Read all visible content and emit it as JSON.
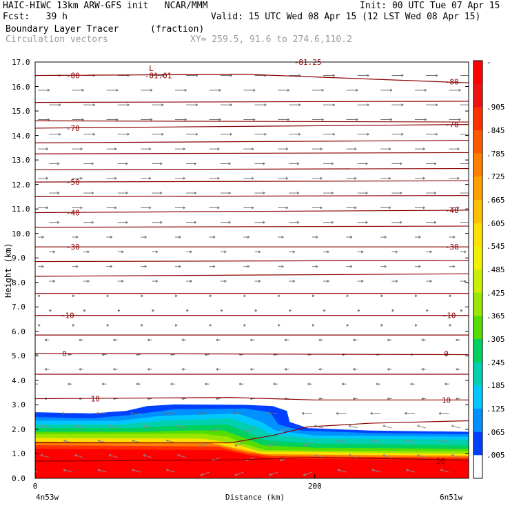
{
  "header": {
    "title_left": "HAIC-HIWC 13km ARW-GFS init   NCAR/MMM",
    "init": "Init: 00 UTC Tue 07 Apr 15",
    "fcst": "Fcst:   39 h",
    "valid": "Valid: 15 UTC Wed 08 Apr 15 (12 LST Wed 08 Apr 15)",
    "field": "Boundary Layer Tracer",
    "units": "(fraction)",
    "vectors": "Circulation vectors",
    "xy": "XY= 259.5, 91.6 to 274.6,110.2"
  },
  "chart_data": {
    "type": "heatmap",
    "xlabel": "Distance (km)",
    "ylabel": "Height (km)",
    "x_ticks": [
      {
        "value": 0,
        "label": "0"
      },
      {
        "value": 200,
        "label": "200"
      }
    ],
    "x_end_labels": {
      "left": "4n53w",
      "right": "6n51w"
    },
    "xlim": [
      0,
      310
    ],
    "ylim": [
      0,
      17
    ],
    "y_ticks": [
      "0.0",
      "1.0",
      "2.0",
      "3.0",
      "4.0",
      "5.0",
      "6.0",
      "7.0",
      "8.0",
      "9.0",
      "10.0",
      "11.0",
      "12.0",
      "13.0",
      "14.0",
      "15.0",
      "16.0",
      "17.0"
    ],
    "colorbar": {
      "labels": [
        "-",
        ".905",
        ".845",
        ".785",
        ".725",
        ".665",
        ".605",
        ".545",
        ".485",
        ".425",
        ".365",
        ".305",
        ".245",
        ".185",
        ".125",
        ".065",
        ".005"
      ],
      "colors": [
        "#ff0000",
        "#f01010",
        "#ff3000",
        "#ff5a00",
        "#ff8000",
        "#ffa000",
        "#ffc000",
        "#ffe000",
        "#f2f200",
        "#ccee00",
        "#99e600",
        "#55dd00",
        "#00d060",
        "#00d0b0",
        "#00c8ff",
        "#0090ff",
        "#0040ff",
        "#ffffff"
      ]
    },
    "isotherm_labels": [
      {
        "text": "-80",
        "x": 27,
        "y": 16.45
      },
      {
        "text": "-81.01",
        "x": 88,
        "y": 16.45
      },
      {
        "text": "L",
        "x": 83,
        "y": 16.75
      },
      {
        "text": "-81.25",
        "x": 195,
        "y": 17.0
      },
      {
        "text": "-80",
        "x": 298,
        "y": 16.2
      },
      {
        "text": "-70",
        "x": 27,
        "y": 14.3
      },
      {
        "text": "-70",
        "x": 298,
        "y": 14.45
      },
      {
        "text": "-50",
        "x": 27,
        "y": 12.1
      },
      {
        "text": "-40",
        "x": 27,
        "y": 10.85
      },
      {
        "text": "-40",
        "x": 298,
        "y": 10.95
      },
      {
        "text": "-30",
        "x": 27,
        "y": 9.45
      },
      {
        "text": "-30",
        "x": 298,
        "y": 9.45
      },
      {
        "text": "-10",
        "x": 23,
        "y": 6.65
      },
      {
        "text": "-10",
        "x": 296,
        "y": 6.65
      },
      {
        "text": "0",
        "x": 21,
        "y": 5.1
      },
      {
        "text": "0",
        "x": 294,
        "y": 5.1
      },
      {
        "text": "10",
        "x": 43,
        "y": 3.25
      },
      {
        "text": "10",
        "x": 294,
        "y": 3.2
      },
      {
        "text": "20",
        "x": 290,
        "y": 0.7
      }
    ]
  }
}
